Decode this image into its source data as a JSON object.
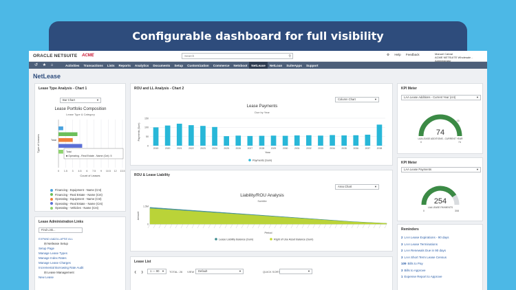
{
  "banner": {
    "title": "Configurable dashboard for full visibility"
  },
  "topbar": {
    "oracle": "ORACLE NETSUITE",
    "acme": "ACME",
    "search_placeholder": "Search",
    "help": "Help",
    "feedback": "Feedback",
    "user_name": "Manuel Cabral",
    "user_role": "ACME NETSUITE Wholesale - Administrator"
  },
  "nav": {
    "items": [
      "Activities",
      "Transactions",
      "Lists",
      "Reports",
      "Analytics",
      "Documents",
      "Setup",
      "Customization",
      "Commerce",
      "Netsboot",
      "NetLease",
      "NetLoan",
      "SuiteApps",
      "Support"
    ],
    "active": "NetLease"
  },
  "page": {
    "title": "NetLease"
  },
  "chart1": {
    "portlet_title": "Lease Type Analysis - Chart 1",
    "type_select": "Bar Chart",
    "tooltip_title": "Total",
    "tooltip_text": "Operating - Real Estate - Name (Cnt): 5",
    "chart_data": {
      "type": "bar",
      "title": "Lease Portfolio Composition",
      "subtitle": "Lease Type & Category",
      "xlabel": "Count of Leases",
      "ylabel": "Type of Leases",
      "category_label": "Total",
      "x_ticks": [
        "0",
        "1.5",
        "3",
        "4.5",
        "6",
        "7.5",
        "9",
        "10.5",
        "12",
        "13.5"
      ],
      "xlim": [
        0,
        13.5
      ],
      "series": [
        {
          "name": "Financing - Equipment - Name (Cnt)",
          "color": "#4aa3df",
          "value": 1
        },
        {
          "name": "Financing - Real Estate - Name (Cnt)",
          "color": "#6bbf59",
          "value": 4
        },
        {
          "name": "Operating - Equipment - Name (Cnt)",
          "color": "#f0813a",
          "value": 3
        },
        {
          "name": "Operating - Real Estate - Name (Cnt)",
          "color": "#5b6fd6",
          "value": 5
        },
        {
          "name": "Operating - Vehicles - Name (Cnt)",
          "color": "#8ed36e",
          "value": 1
        }
      ]
    }
  },
  "links": {
    "portlet_title": "Lease Administration Links",
    "find_placeholder": "Find Link...",
    "expand": "EXPAND ALL",
    "collapse": "COLLAPSE ALL",
    "section1": "Netlease Setup",
    "items1": [
      "Setup Page",
      "Manage Lease Types",
      "Manage Index Rates",
      "Manage Lease Charges",
      "Incremental Borrowing Rate Audit"
    ],
    "section2": "Lease Management",
    "items2": [
      "New Lease"
    ]
  },
  "chart2": {
    "portlet_title": "ROU and LL Analysis - Chart 2",
    "type_select": "Column Chart",
    "legend": "Payments (Sum)",
    "chart_data": {
      "type": "bar",
      "title": "Lease Payments",
      "subtitle": "Due by Year",
      "xlabel": "Year",
      "ylabel": "Payments (Sum)",
      "y_ticks": [
        "0",
        "50",
        "100",
        "150"
      ],
      "ylim": [
        0,
        150
      ],
      "categories": [
        "2019",
        "2020",
        "2021",
        "2022",
        "2023",
        "2024",
        "2025",
        "2026",
        "2027",
        "2028",
        "2029",
        "2030",
        "2031",
        "2032",
        "2033",
        "2034",
        "2035",
        "2036",
        "2037",
        "2038"
      ],
      "values": [
        100,
        110,
        120,
        112,
        108,
        102,
        52,
        55,
        53,
        54,
        55,
        54,
        56,
        57,
        55,
        58,
        56,
        57,
        60,
        115
      ],
      "color": "#28b7d8"
    }
  },
  "liability": {
    "portlet_title": "ROU & Lease Liability",
    "type_select": "Area Chart",
    "chart_data": {
      "type": "area",
      "title": "Liability/ROU Analysis",
      "subtitle": "Subtitle",
      "xlabel": "Period",
      "ylabel": "Amount",
      "y_ticks": [
        "0",
        "1.5M"
      ],
      "ylim": [
        0,
        1500000
      ],
      "series": [
        {
          "name": "Lease Liability Balance (Sum)",
          "color": "#3d8b8f",
          "values": [
            1400000,
            1200000,
            1000000,
            800000,
            600000,
            400000,
            200000,
            60000
          ]
        },
        {
          "name": "Right of Use Asset Balance (Sum)",
          "color": "#c5d92e",
          "values": [
            1300000,
            1110000,
            920000,
            740000,
            550000,
            360000,
            170000,
            50000
          ]
        }
      ]
    }
  },
  "lease_list": {
    "portlet_title": "Lease List",
    "range": "1 — 90",
    "total": "TOTAL: 26",
    "view_label": "VIEW",
    "view_value": "Default",
    "quick_sort": "QUICK SORT"
  },
  "kpi1": {
    "portlet_title": "KPI Meter",
    "select": "LAA Lease Additions - Current Year (cnt)",
    "value": "74",
    "caption": "LAA LEASE ADDITIONS - CURRENT YEAR",
    "min": "0",
    "max": "74",
    "top": "15",
    "fraction": 1.0
  },
  "kpi2": {
    "portlet_title": "KPI Meter",
    "select": "LAA Lease Payments",
    "value": "254",
    "caption": "LAA LEASE PAYMENTS",
    "min": "0",
    "max": "308",
    "fraction": 0.82
  },
  "reminders": {
    "portlet_title": "Reminders",
    "items": [
      {
        "count": "2",
        "label": "LAA Lease Expirations - 90 days"
      },
      {
        "count": "3",
        "label": "LAA Lease Terminations"
      },
      {
        "count": "2",
        "label": "LAA Renewals Due in 90 days"
      },
      {
        "count": "3",
        "label": "LAA Short Term Lease Census"
      },
      {
        "count": "109",
        "label": "Bills to Pay"
      },
      {
        "count": "3",
        "label": "Bills to Approve"
      },
      {
        "count": "1",
        "label": "Expense Report to Approve"
      }
    ]
  },
  "colors": {
    "nav": "#4d5f79",
    "accent": "#2e4c7c",
    "gauge": "#3b8a45"
  }
}
